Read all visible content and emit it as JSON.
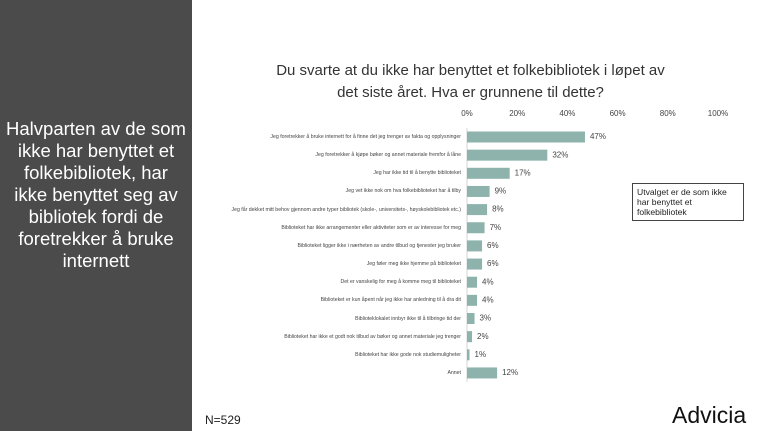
{
  "side_text": "Halvparten av de som ikke har benyttet et folkebibliotek, har ikke benyttet seg av bibliotek fordi de foretrekker å bruke internett",
  "chart_data": {
    "type": "bar",
    "orientation": "horizontal",
    "title": "Du svarte at du ikke har benyttet et folkebibliotek i løpet av det siste året. Hva er grunnene til dette?",
    "categories": [
      "Jeg foretrekker å bruke internett for å finne det jeg trenger av fakta og opplysninger",
      "Jeg foretrekker å kjøpe bøker og annet materiale fremfor å låne",
      "Jeg har ikke tid til å benytte biblioteket",
      "Jeg vet ikke nok om hva folkebiblioteket har å tilby",
      "Jeg får dekket mitt behov gjennom andre typer bibliotek (skole-, universitets-, høyskolebibliotek etc.)",
      "Biblioteket har ikke arrangementer eller aktiviteter som er av interesse for meg",
      "Biblioteket ligger ikke i nærheten av andre tilbud og tjenester jeg bruker",
      "Jeg føler meg ikke hjemme på biblioteket",
      "Det er vanskelig for meg å komme meg til biblioteket",
      "Biblioteket er kun åpent når jeg ikke har anledning til å dra dit",
      "Biblioteklokalet innbyr ikke til å tilbringe tid der",
      "Biblioteket har ikke et godt nok tilbud av bøker og annet materiale jeg trenger",
      "Biblioteket har ikke gode nok studiemuligheter",
      "Annet"
    ],
    "values": [
      47,
      32,
      17,
      9,
      8,
      7,
      6,
      6,
      4,
      4,
      3,
      2,
      1,
      12
    ],
    "value_labels": [
      "47%",
      "32%",
      "17%",
      "9%",
      "8%",
      "7%",
      "6%",
      "6%",
      "4%",
      "4%",
      "3%",
      "2%",
      "1%",
      "12%"
    ],
    "color": "#8db3ac",
    "xlim": [
      0,
      100
    ],
    "xticks": [
      {
        "value": 0,
        "label": "0%"
      },
      {
        "value": 20,
        "label": "20%"
      },
      {
        "value": 40,
        "label": "40%"
      },
      {
        "value": 60,
        "label": "60%"
      },
      {
        "value": 80,
        "label": "80%"
      },
      {
        "value": 100,
        "label": "100%"
      }
    ],
    "annotation": "Utvalget er de som ikke har benyttet et folkebibliotek",
    "note": "N=529"
  },
  "logo": "Advicia"
}
